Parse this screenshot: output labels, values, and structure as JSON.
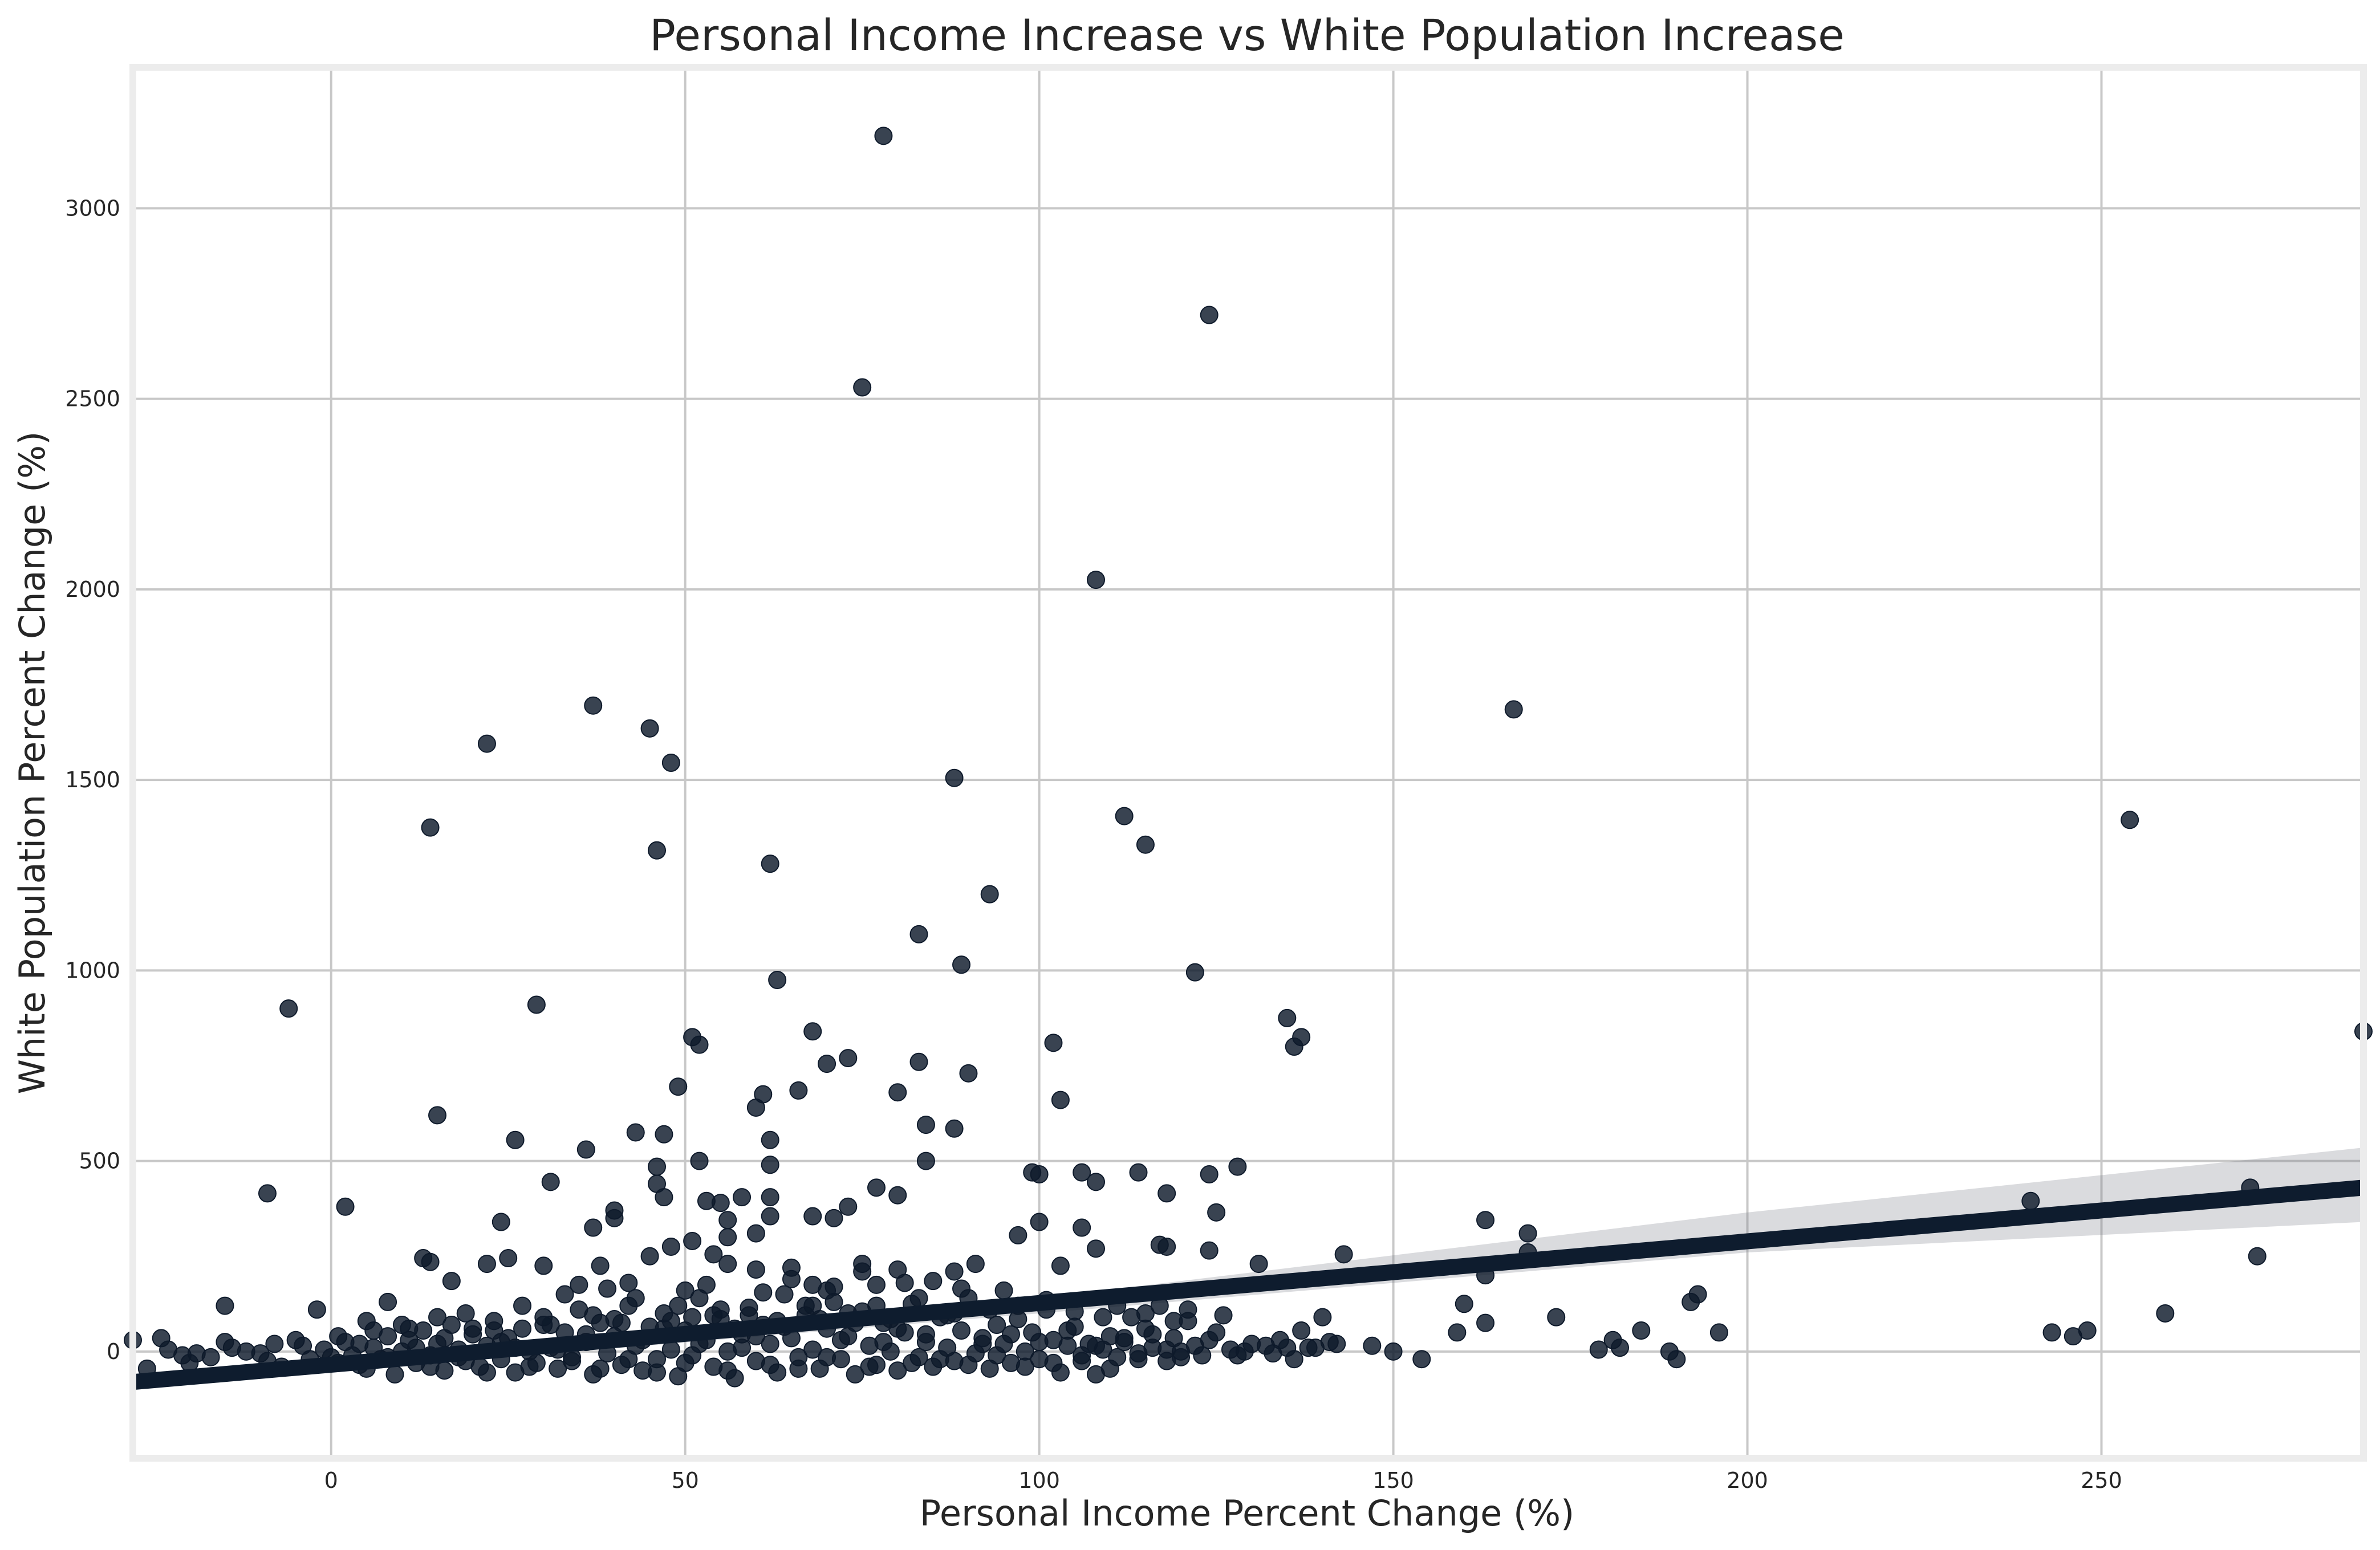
{
  "chart_data": {
    "type": "scatter",
    "title": "Personal Income Increase vs White Population Increase",
    "xlabel": "Personal Income Percent Change (%)",
    "ylabel": "White Population Percent Change (%)",
    "xlim": [
      -28,
      287
    ],
    "ylim": [
      -280,
      3370
    ],
    "x_ticks": [
      0,
      50,
      100,
      150,
      200,
      250
    ],
    "x_tick_labels": [
      "0",
      "50",
      "100",
      "150",
      "200",
      "250"
    ],
    "y_ticks": [
      0,
      500,
      1000,
      1500,
      2000,
      2500,
      3000
    ],
    "y_tick_labels": [
      "0",
      "500",
      "1000",
      "1500",
      "2000",
      "2500",
      "3000"
    ],
    "grid": true,
    "legend": "none",
    "colors": {
      "points": "#0e1a2b",
      "regression_line": "#0e1c2e",
      "confidence_band": "#7a7f8a"
    },
    "regression": {
      "line": [
        [
          -28,
          -80
        ],
        [
          287,
          430
        ]
      ],
      "ci_upper": [
        [
          -28,
          -65
        ],
        [
          100,
          140
        ],
        [
          200,
          365
        ],
        [
          287,
          535
        ]
      ],
      "ci_lower": [
        [
          -28,
          -95
        ],
        [
          100,
          100
        ],
        [
          200,
          260
        ],
        [
          287,
          340
        ]
      ]
    },
    "points": [
      [
        78,
        3190
      ],
      [
        124,
        2720
      ],
      [
        75,
        2530
      ],
      [
        108,
        2025
      ],
      [
        37,
        1695
      ],
      [
        167,
        1685
      ],
      [
        45,
        1635
      ],
      [
        22,
        1595
      ],
      [
        48,
        1545
      ],
      [
        88,
        1505
      ],
      [
        112,
        1405
      ],
      [
        14,
        1375
      ],
      [
        254,
        1395
      ],
      [
        115,
        1330
      ],
      [
        46,
        1315
      ],
      [
        62,
        1280
      ],
      [
        93,
        1200
      ],
      [
        83,
        1095
      ],
      [
        89,
        1015
      ],
      [
        122,
        995
      ],
      [
        63,
        975
      ],
      [
        -6,
        900
      ],
      [
        29,
        910
      ],
      [
        135,
        875
      ],
      [
        68,
        840
      ],
      [
        137,
        825
      ],
      [
        287,
        840
      ],
      [
        51,
        825
      ],
      [
        52,
        805
      ],
      [
        102,
        810
      ],
      [
        136,
        800
      ],
      [
        73,
        770
      ],
      [
        70,
        755
      ],
      [
        83,
        760
      ],
      [
        90,
        730
      ],
      [
        49,
        695
      ],
      [
        61,
        675
      ],
      [
        66,
        685
      ],
      [
        80,
        680
      ],
      [
        103,
        660
      ],
      [
        60,
        640
      ],
      [
        15,
        620
      ],
      [
        84,
        595
      ],
      [
        88,
        585
      ],
      [
        43,
        575
      ],
      [
        47,
        570
      ],
      [
        26,
        555
      ],
      [
        62,
        555
      ],
      [
        36,
        530
      ],
      [
        52,
        500
      ],
      [
        84,
        500
      ],
      [
        46,
        485
      ],
      [
        62,
        490
      ],
      [
        128,
        485
      ],
      [
        106,
        470
      ],
      [
        114,
        470
      ],
      [
        124,
        465
      ],
      [
        100,
        465
      ],
      [
        99,
        470
      ],
      [
        31,
        445
      ],
      [
        46,
        440
      ],
      [
        108,
        445
      ],
      [
        77,
        430
      ],
      [
        271,
        430
      ],
      [
        -9,
        415
      ],
      [
        118,
        415
      ],
      [
        80,
        410
      ],
      [
        53,
        395
      ],
      [
        240,
        395
      ],
      [
        55,
        390
      ],
      [
        47,
        405
      ],
      [
        58,
        405
      ],
      [
        62,
        405
      ],
      [
        2,
        380
      ],
      [
        40,
        370
      ],
      [
        73,
        380
      ],
      [
        125,
        365
      ],
      [
        62,
        355
      ],
      [
        40,
        350
      ],
      [
        68,
        355
      ],
      [
        71,
        350
      ],
      [
        56,
        345
      ],
      [
        106,
        325
      ],
      [
        24,
        340
      ],
      [
        100,
        340
      ],
      [
        163,
        345
      ],
      [
        37,
        325
      ],
      [
        169,
        310
      ],
      [
        97,
        305
      ],
      [
        60,
        310
      ],
      [
        56,
        300
      ],
      [
        51,
        290
      ],
      [
        117,
        280
      ],
      [
        118,
        275
      ],
      [
        108,
        270
      ],
      [
        124,
        265
      ],
      [
        143,
        255
      ],
      [
        169,
        260
      ],
      [
        272,
        250
      ],
      [
        48,
        275
      ],
      [
        54,
        255
      ],
      [
        22,
        230
      ],
      [
        13,
        245
      ],
      [
        14,
        235
      ],
      [
        25,
        245
      ],
      [
        30,
        225
      ],
      [
        38,
        225
      ],
      [
        45,
        250
      ],
      [
        56,
        230
      ],
      [
        60,
        215
      ],
      [
        65,
        220
      ],
      [
        75,
        230
      ],
      [
        80,
        215
      ],
      [
        88,
        210
      ],
      [
        91,
        230
      ],
      [
        103,
        225
      ],
      [
        131,
        230
      ],
      [
        163,
        200
      ],
      [
        85,
        185
      ],
      [
        77,
        175
      ],
      [
        68,
        175
      ],
      [
        70,
        160
      ],
      [
        35,
        175
      ],
      [
        42,
        180
      ],
      [
        50,
        160
      ],
      [
        17,
        185
      ],
      [
        -15,
        120
      ],
      [
        -2,
        110
      ],
      [
        8,
        130
      ],
      [
        193,
        150
      ],
      [
        160,
        125
      ],
      [
        173,
        90
      ],
      [
        192,
        130
      ],
      [
        196,
        50
      ],
      [
        185,
        55
      ],
      [
        181,
        30
      ],
      [
        179,
        5
      ],
      [
        182,
        10
      ],
      [
        189,
        0
      ],
      [
        190,
        -20
      ],
      [
        243,
        50
      ],
      [
        246,
        40
      ],
      [
        248,
        55
      ],
      [
        259,
        100
      ],
      [
        140,
        90
      ],
      [
        142,
        20
      ],
      [
        147,
        15
      ],
      [
        150,
        0
      ],
      [
        154,
        -20
      ],
      [
        138,
        10
      ],
      [
        159,
        50
      ],
      [
        163,
        75
      ],
      [
        -28,
        30
      ],
      [
        -26,
        -45
      ],
      [
        -24,
        35
      ],
      [
        -23,
        5
      ],
      [
        -21,
        -10
      ],
      [
        -19,
        -5
      ],
      [
        -17,
        -15
      ],
      [
        -14,
        10
      ],
      [
        -12,
        0
      ],
      [
        -10,
        -5
      ],
      [
        -8,
        20
      ],
      [
        -7,
        -40
      ],
      [
        -5,
        30
      ],
      [
        -3,
        -20
      ],
      [
        -1,
        5
      ],
      [
        1,
        -30
      ],
      [
        1,
        40
      ],
      [
        3,
        -10
      ],
      [
        4,
        20
      ],
      [
        5,
        -45
      ],
      [
        6,
        10
      ],
      [
        7,
        -20
      ],
      [
        8,
        40
      ],
      [
        9,
        -60
      ],
      [
        10,
        0
      ],
      [
        11,
        30
      ],
      [
        12,
        -30
      ],
      [
        13,
        55
      ],
      [
        14,
        -10
      ],
      [
        15,
        20
      ],
      [
        16,
        -50
      ],
      [
        17,
        70
      ],
      [
        18,
        5
      ],
      [
        19,
        -25
      ],
      [
        20,
        45
      ],
      [
        21,
        -40
      ],
      [
        22,
        15
      ],
      [
        23,
        80
      ],
      [
        24,
        -20
      ],
      [
        25,
        35
      ],
      [
        26,
        -55
      ],
      [
        27,
        60
      ],
      [
        28,
        0
      ],
      [
        29,
        -30
      ],
      [
        30,
        90
      ],
      [
        31,
        10
      ],
      [
        32,
        -45
      ],
      [
        33,
        50
      ],
      [
        34,
        -15
      ],
      [
        35,
        110
      ],
      [
        36,
        25
      ],
      [
        37,
        -60
      ],
      [
        38,
        75
      ],
      [
        39,
        -5
      ],
      [
        40,
        40
      ],
      [
        41,
        -35
      ],
      [
        42,
        120
      ],
      [
        43,
        15
      ],
      [
        44,
        -50
      ],
      [
        45,
        65
      ],
      [
        46,
        -20
      ],
      [
        47,
        100
      ],
      [
        48,
        5
      ],
      [
        49,
        -65
      ],
      [
        50,
        55
      ],
      [
        51,
        -10
      ],
      [
        52,
        140
      ],
      [
        53,
        30
      ],
      [
        54,
        -40
      ],
      [
        55,
        85
      ],
      [
        56,
        0
      ],
      [
        57,
        -70
      ],
      [
        58,
        45
      ],
      [
        59,
        115
      ],
      [
        60,
        -25
      ],
      [
        61,
        70
      ],
      [
        62,
        20
      ],
      [
        63,
        -55
      ],
      [
        64,
        150
      ],
      [
        65,
        35
      ],
      [
        66,
        -15
      ],
      [
        67,
        95
      ],
      [
        68,
        5
      ],
      [
        69,
        -45
      ],
      [
        70,
        60
      ],
      [
        71,
        130
      ],
      [
        72,
        -20
      ],
      [
        73,
        40
      ],
      [
        74,
        -60
      ],
      [
        75,
        105
      ],
      [
        76,
        15
      ],
      [
        77,
        -35
      ],
      [
        78,
        75
      ],
      [
        79,
        0
      ],
      [
        80,
        -50
      ],
      [
        81,
        50
      ],
      [
        82,
        125
      ],
      [
        83,
        -15
      ],
      [
        84,
        25
      ],
      [
        85,
        -40
      ],
      [
        86,
        90
      ],
      [
        87,
        10
      ],
      [
        88,
        -25
      ],
      [
        89,
        55
      ],
      [
        90,
        140
      ],
      [
        91,
        -5
      ],
      [
        92,
        35
      ],
      [
        93,
        -45
      ],
      [
        94,
        70
      ],
      [
        95,
        20
      ],
      [
        96,
        -30
      ],
      [
        97,
        85
      ],
      [
        98,
        0
      ],
      [
        99,
        50
      ],
      [
        100,
        -20
      ],
      [
        101,
        110
      ],
      [
        102,
        30
      ],
      [
        103,
        -55
      ],
      [
        104,
        15
      ],
      [
        105,
        65
      ],
      [
        106,
        -10
      ],
      [
        107,
        20
      ],
      [
        108,
        -60
      ],
      [
        109,
        5
      ],
      [
        110,
        40
      ],
      [
        111,
        -15
      ],
      [
        112,
        25
      ],
      [
        113,
        90
      ],
      [
        114,
        -5
      ],
      [
        115,
        60
      ],
      [
        116,
        10
      ],
      [
        117,
        120
      ],
      [
        118,
        -25
      ],
      [
        119,
        35
      ],
      [
        120,
        0
      ],
      [
        121,
        80
      ],
      [
        122,
        15
      ],
      [
        123,
        -10
      ],
      [
        125,
        50
      ],
      [
        127,
        5
      ],
      [
        129,
        0
      ],
      [
        132,
        15
      ],
      [
        134,
        30
      ],
      [
        136,
        -20
      ],
      [
        137,
        55
      ],
      [
        139,
        10
      ],
      [
        141,
        25
      ],
      [
        -20,
        -30
      ],
      [
        -15,
        25
      ],
      [
        -9,
        -25
      ],
      [
        -4,
        15
      ],
      [
        0,
        -15
      ],
      [
        2,
        25
      ],
      [
        4,
        -35
      ],
      [
        6,
        55
      ],
      [
        8,
        -15
      ],
      [
        10,
        70
      ],
      [
        12,
        10
      ],
      [
        14,
        -40
      ],
      [
        16,
        35
      ],
      [
        18,
        -15
      ],
      [
        20,
        60
      ],
      [
        22,
        -55
      ],
      [
        24,
        25
      ],
      [
        26,
        10
      ],
      [
        28,
        -40
      ],
      [
        30,
        70
      ],
      [
        32,
        5
      ],
      [
        34,
        -25
      ],
      [
        36,
        45
      ],
      [
        38,
        -45
      ],
      [
        40,
        85
      ],
      [
        42,
        -20
      ],
      [
        44,
        30
      ],
      [
        46,
        -55
      ],
      [
        48,
        80
      ],
      [
        50,
        -30
      ],
      [
        52,
        20
      ],
      [
        54,
        95
      ],
      [
        56,
        -50
      ],
      [
        58,
        10
      ],
      [
        60,
        40
      ],
      [
        62,
        -35
      ],
      [
        64,
        65
      ],
      [
        66,
        -45
      ],
      [
        68,
        120
      ],
      [
        70,
        -15
      ],
      [
        72,
        30
      ],
      [
        74,
        75
      ],
      [
        76,
        -40
      ],
      [
        78,
        25
      ],
      [
        80,
        60
      ],
      [
        82,
        -30
      ],
      [
        84,
        45
      ],
      [
        86,
        -20
      ],
      [
        88,
        100
      ],
      [
        90,
        -35
      ],
      [
        92,
        20
      ],
      [
        94,
        -10
      ],
      [
        96,
        45
      ],
      [
        98,
        -40
      ],
      [
        100,
        25
      ],
      [
        102,
        -30
      ],
      [
        104,
        55
      ],
      [
        106,
        -25
      ],
      [
        108,
        15
      ],
      [
        110,
        -45
      ],
      [
        112,
        35
      ],
      [
        114,
        -20
      ],
      [
        116,
        45
      ],
      [
        118,
        5
      ],
      [
        120,
        -15
      ],
      [
        124,
        30
      ],
      [
        128,
        -10
      ],
      [
        130,
        20
      ],
      [
        133,
        -5
      ],
      [
        135,
        10
      ],
      [
        5,
        80
      ],
      [
        11,
        60
      ],
      [
        15,
        90
      ],
      [
        19,
        100
      ],
      [
        23,
        55
      ],
      [
        27,
        120
      ],
      [
        31,
        70
      ],
      [
        33,
        150
      ],
      [
        37,
        95
      ],
      [
        39,
        165
      ],
      [
        41,
        75
      ],
      [
        43,
        140
      ],
      [
        47,
        60
      ],
      [
        49,
        120
      ],
      [
        51,
        90
      ],
      [
        53,
        175
      ],
      [
        55,
        110
      ],
      [
        57,
        60
      ],
      [
        59,
        95
      ],
      [
        61,
        155
      ],
      [
        63,
        80
      ],
      [
        65,
        190
      ],
      [
        67,
        120
      ],
      [
        69,
        85
      ],
      [
        71,
        170
      ],
      [
        73,
        100
      ],
      [
        75,
        210
      ],
      [
        77,
        120
      ],
      [
        79,
        85
      ],
      [
        81,
        180
      ],
      [
        83,
        140
      ],
      [
        87,
        95
      ],
      [
        89,
        165
      ],
      [
        93,
        110
      ],
      [
        95,
        160
      ],
      [
        97,
        120
      ],
      [
        101,
        135
      ],
      [
        105,
        105
      ],
      [
        109,
        90
      ],
      [
        111,
        120
      ],
      [
        115,
        100
      ],
      [
        119,
        80
      ],
      [
        121,
        110
      ],
      [
        126,
        95
      ]
    ]
  }
}
